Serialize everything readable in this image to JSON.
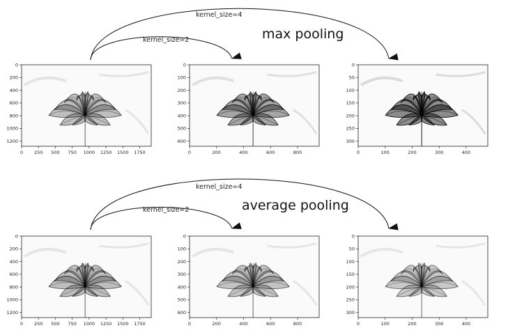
{
  "sections": [
    {
      "title": "max pooling",
      "arrow_labels": [
        "kernel_size=2",
        "kernel_size=4"
      ],
      "panels": [
        {
          "xticks": [
            "0",
            "250",
            "500",
            "750",
            "1000",
            "1250",
            "1500",
            "1750"
          ],
          "yticks": [
            "0",
            "200",
            "400",
            "600",
            "800",
            "1000",
            "1200"
          ],
          "xmax": 1920,
          "ymax": 1280,
          "darkness": 0.5
        },
        {
          "xticks": [
            "0",
            "200",
            "400",
            "600",
            "800"
          ],
          "yticks": [
            "0",
            "100",
            "200",
            "300",
            "400",
            "500",
            "600"
          ],
          "xmax": 960,
          "ymax": 640,
          "darkness": 0.75
        },
        {
          "xticks": [
            "0",
            "100",
            "200",
            "300",
            "400"
          ],
          "yticks": [
            "0",
            "50",
            "100",
            "150",
            "200",
            "250",
            "300"
          ],
          "xmax": 480,
          "ymax": 320,
          "darkness": 1.0
        }
      ]
    },
    {
      "title": "average pooling",
      "arrow_labels": [
        "kernel_size=2",
        "kernel_size=4"
      ],
      "panels": [
        {
          "xticks": [
            "0",
            "250",
            "500",
            "750",
            "1000",
            "1250",
            "1500",
            "1750"
          ],
          "yticks": [
            "0",
            "200",
            "400",
            "600",
            "800",
            "1000",
            "1200"
          ],
          "xmax": 1920,
          "ymax": 1280,
          "darkness": 0.5
        },
        {
          "xticks": [
            "0",
            "200",
            "400",
            "600",
            "800"
          ],
          "yticks": [
            "0",
            "100",
            "200",
            "300",
            "400",
            "500",
            "600"
          ],
          "xmax": 960,
          "ymax": 640,
          "darkness": 0.45
        },
        {
          "xticks": [
            "0",
            "100",
            "200",
            "300",
            "400"
          ],
          "yticks": [
            "0",
            "50",
            "100",
            "150",
            "200",
            "250",
            "300"
          ],
          "xmax": 480,
          "ymax": 320,
          "darkness": 0.4
        }
      ]
    }
  ]
}
